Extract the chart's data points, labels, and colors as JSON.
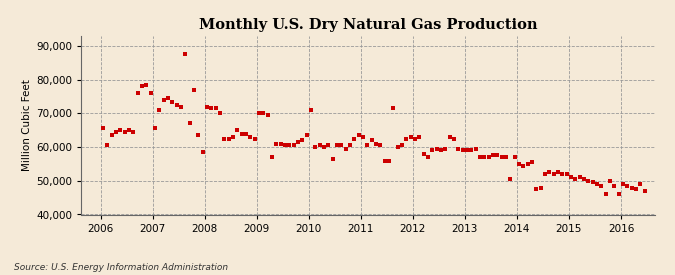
{
  "title": "Monthly U.S. Dry Natural Gas Production",
  "ylabel": "Million Cubic Feet",
  "source": "Source: U.S. Energy Information Administration",
  "background_color": "#f5ead8",
  "plot_bg_color": "#f5ead8",
  "dot_color": "#cc0000",
  "ylim": [
    40000,
    93000
  ],
  "yticks": [
    40000,
    50000,
    60000,
    70000,
    80000,
    90000
  ],
  "xlim_left": 2005.62,
  "xlim_right": 2016.65,
  "data": [
    [
      2006,
      1,
      65500
    ],
    [
      2006,
      2,
      60500
    ],
    [
      2006,
      3,
      63500
    ],
    [
      2006,
      4,
      64500
    ],
    [
      2006,
      5,
      65000
    ],
    [
      2006,
      6,
      64500
    ],
    [
      2006,
      7,
      65000
    ],
    [
      2006,
      8,
      64500
    ],
    [
      2006,
      9,
      76000
    ],
    [
      2006,
      10,
      78000
    ],
    [
      2006,
      11,
      78500
    ],
    [
      2006,
      12,
      76000
    ],
    [
      2007,
      1,
      65500
    ],
    [
      2007,
      2,
      71000
    ],
    [
      2007,
      3,
      74000
    ],
    [
      2007,
      4,
      74500
    ],
    [
      2007,
      5,
      73500
    ],
    [
      2007,
      6,
      72500
    ],
    [
      2007,
      7,
      72000
    ],
    [
      2007,
      8,
      87500
    ],
    [
      2007,
      9,
      67000
    ],
    [
      2007,
      10,
      77000
    ],
    [
      2007,
      11,
      63500
    ],
    [
      2007,
      12,
      58500
    ],
    [
      2008,
      1,
      72000
    ],
    [
      2008,
      2,
      71500
    ],
    [
      2008,
      3,
      71500
    ],
    [
      2008,
      4,
      70000
    ],
    [
      2008,
      5,
      62500
    ],
    [
      2008,
      6,
      62500
    ],
    [
      2008,
      7,
      63000
    ],
    [
      2008,
      8,
      65000
    ],
    [
      2008,
      9,
      64000
    ],
    [
      2008,
      10,
      64000
    ],
    [
      2008,
      11,
      63000
    ],
    [
      2008,
      12,
      62500
    ],
    [
      2009,
      1,
      70000
    ],
    [
      2009,
      2,
      70000
    ],
    [
      2009,
      3,
      69500
    ],
    [
      2009,
      4,
      57000
    ],
    [
      2009,
      5,
      61000
    ],
    [
      2009,
      6,
      61000
    ],
    [
      2009,
      7,
      60500
    ],
    [
      2009,
      8,
      60500
    ],
    [
      2009,
      9,
      60500
    ],
    [
      2009,
      10,
      61500
    ],
    [
      2009,
      11,
      62000
    ],
    [
      2009,
      12,
      63500
    ],
    [
      2010,
      1,
      71000
    ],
    [
      2010,
      2,
      60000
    ],
    [
      2010,
      3,
      60500
    ],
    [
      2010,
      4,
      60000
    ],
    [
      2010,
      5,
      60500
    ],
    [
      2010,
      6,
      56500
    ],
    [
      2010,
      7,
      60500
    ],
    [
      2010,
      8,
      60500
    ],
    [
      2010,
      9,
      59500
    ],
    [
      2010,
      10,
      60500
    ],
    [
      2010,
      11,
      62500
    ],
    [
      2010,
      12,
      63500
    ],
    [
      2011,
      1,
      63000
    ],
    [
      2011,
      2,
      60500
    ],
    [
      2011,
      3,
      62000
    ],
    [
      2011,
      4,
      61000
    ],
    [
      2011,
      5,
      60500
    ],
    [
      2011,
      6,
      56000
    ],
    [
      2011,
      7,
      56000
    ],
    [
      2011,
      8,
      71500
    ],
    [
      2011,
      9,
      60000
    ],
    [
      2011,
      10,
      60500
    ],
    [
      2011,
      11,
      62500
    ],
    [
      2011,
      12,
      63000
    ],
    [
      2012,
      1,
      62500
    ],
    [
      2012,
      2,
      63000
    ],
    [
      2012,
      3,
      58000
    ],
    [
      2012,
      4,
      57000
    ],
    [
      2012,
      5,
      59000
    ],
    [
      2012,
      6,
      59500
    ],
    [
      2012,
      7,
      59000
    ],
    [
      2012,
      8,
      59500
    ],
    [
      2012,
      9,
      63000
    ],
    [
      2012,
      10,
      62500
    ],
    [
      2012,
      11,
      59500
    ],
    [
      2012,
      12,
      59000
    ],
    [
      2013,
      1,
      59000
    ],
    [
      2013,
      2,
      59000
    ],
    [
      2013,
      3,
      59500
    ],
    [
      2013,
      4,
      57000
    ],
    [
      2013,
      5,
      57000
    ],
    [
      2013,
      6,
      57000
    ],
    [
      2013,
      7,
      57500
    ],
    [
      2013,
      8,
      57500
    ],
    [
      2013,
      9,
      57000
    ],
    [
      2013,
      10,
      57000
    ],
    [
      2013,
      11,
      50500
    ],
    [
      2013,
      12,
      57000
    ],
    [
      2014,
      1,
      55000
    ],
    [
      2014,
      2,
      54500
    ],
    [
      2014,
      3,
      55000
    ],
    [
      2014,
      4,
      55500
    ],
    [
      2014,
      5,
      47500
    ],
    [
      2014,
      6,
      48000
    ],
    [
      2014,
      7,
      52000
    ],
    [
      2014,
      8,
      52500
    ],
    [
      2014,
      9,
      52000
    ],
    [
      2014,
      10,
      52500
    ],
    [
      2014,
      11,
      52000
    ],
    [
      2014,
      12,
      52000
    ],
    [
      2015,
      1,
      51000
    ],
    [
      2015,
      2,
      50500
    ],
    [
      2015,
      3,
      51000
    ],
    [
      2015,
      4,
      50500
    ],
    [
      2015,
      5,
      50000
    ],
    [
      2015,
      6,
      49500
    ],
    [
      2015,
      7,
      49000
    ],
    [
      2015,
      8,
      48500
    ],
    [
      2015,
      9,
      46000
    ],
    [
      2015,
      10,
      50000
    ],
    [
      2015,
      11,
      48500
    ],
    [
      2015,
      12,
      46000
    ],
    [
      2016,
      1,
      49000
    ],
    [
      2016,
      2,
      48500
    ],
    [
      2016,
      3,
      48000
    ],
    [
      2016,
      4,
      47500
    ],
    [
      2016,
      5,
      49000
    ],
    [
      2016,
      6,
      47000
    ]
  ]
}
